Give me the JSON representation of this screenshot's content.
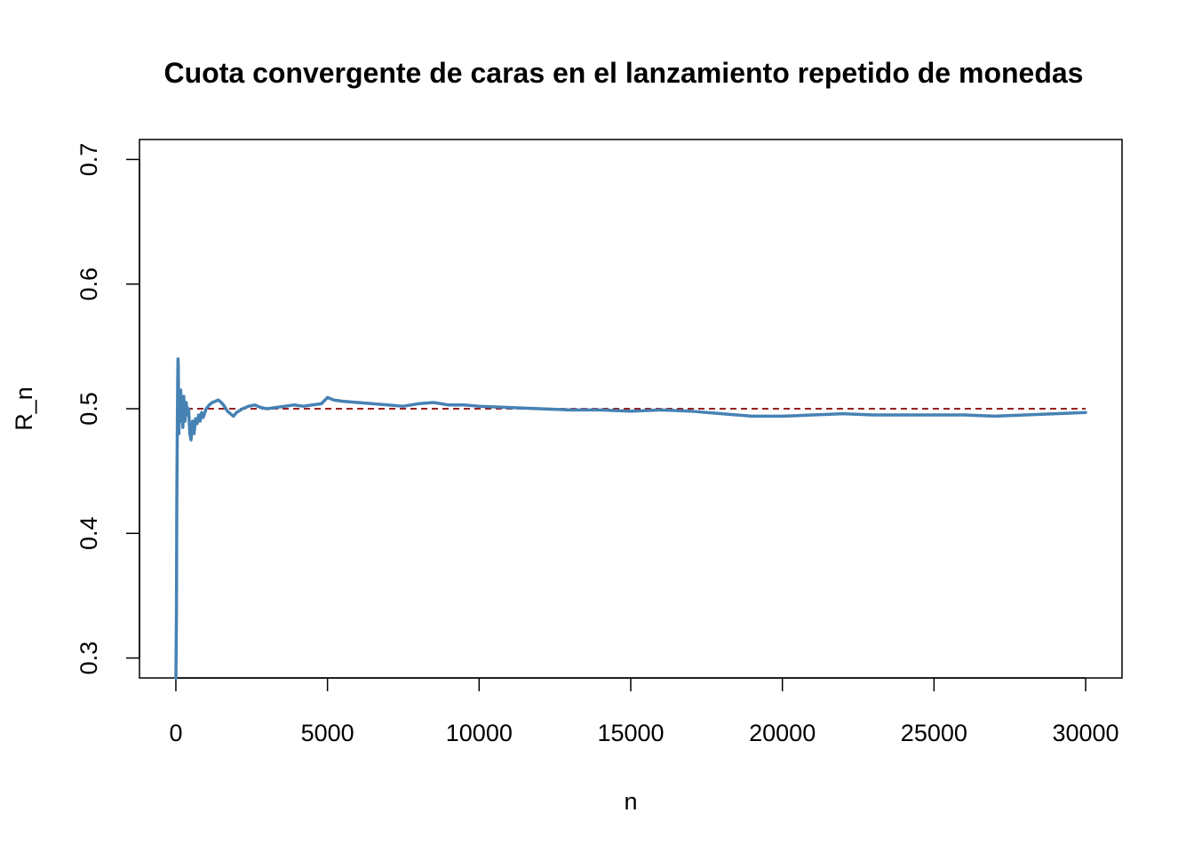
{
  "chart_data": {
    "type": "line",
    "title": "Cuota convergente de caras en el lanzamiento repetido de monedas",
    "xlabel": "n",
    "ylabel": "R_n",
    "xlim": [
      -1200,
      31200
    ],
    "ylim": [
      0.284,
      0.716
    ],
    "x_ticks": [
      0,
      5000,
      10000,
      15000,
      20000,
      25000,
      30000
    ],
    "x_tick_labels": [
      "0",
      "5000",
      "10000",
      "15000",
      "20000",
      "25000",
      "30000"
    ],
    "y_ticks": [
      0.3,
      0.4,
      0.5,
      0.6,
      0.7
    ],
    "y_tick_labels": [
      "0.3",
      "0.4",
      "0.5",
      "0.6",
      "0.7"
    ],
    "grid": false,
    "reference_line": {
      "y": 0.5,
      "style": "dashed",
      "color": "#8B0000"
    },
    "series": [
      {
        "color": "#4682B4",
        "x": [
          1,
          10,
          20,
          30,
          40,
          50,
          60,
          70,
          80,
          90,
          100,
          120,
          140,
          160,
          180,
          200,
          230,
          260,
          300,
          340,
          380,
          420,
          460,
          500,
          550,
          600,
          650,
          700,
          750,
          800,
          850,
          900,
          1000,
          1100,
          1200,
          1300,
          1400,
          1500,
          1600,
          1700,
          1800,
          1900,
          2000,
          2200,
          2400,
          2600,
          2800,
          3000,
          3300,
          3600,
          3900,
          4200,
          4500,
          4800,
          5000,
          5200,
          5500,
          6000,
          6500,
          7000,
          7500,
          8000,
          8500,
          9000,
          9500,
          10000,
          11000,
          12000,
          13000,
          14000,
          15000,
          16000,
          17000,
          18000,
          19000,
          20000,
          21000,
          22000,
          23000,
          24000,
          25000,
          26000,
          27000,
          28000,
          29000,
          30000
        ],
        "y": [
          0.284,
          0.31,
          0.34,
          0.42,
          0.46,
          0.49,
          0.52,
          0.54,
          0.535,
          0.5,
          0.48,
          0.51,
          0.495,
          0.515,
          0.49,
          0.505,
          0.485,
          0.51,
          0.49,
          0.505,
          0.495,
          0.5,
          0.48,
          0.475,
          0.49,
          0.48,
          0.492,
          0.488,
          0.495,
          0.49,
          0.497,
          0.493,
          0.5,
          0.503,
          0.505,
          0.506,
          0.507,
          0.505,
          0.502,
          0.498,
          0.496,
          0.494,
          0.497,
          0.5,
          0.502,
          0.503,
          0.501,
          0.5,
          0.501,
          0.502,
          0.503,
          0.502,
          0.503,
          0.504,
          0.509,
          0.507,
          0.506,
          0.505,
          0.504,
          0.503,
          0.502,
          0.504,
          0.505,
          0.503,
          0.503,
          0.502,
          0.501,
          0.5,
          0.499,
          0.499,
          0.498,
          0.499,
          0.498,
          0.496,
          0.494,
          0.494,
          0.495,
          0.496,
          0.495,
          0.495,
          0.495,
          0.495,
          0.494,
          0.495,
          0.496,
          0.497
        ]
      }
    ]
  }
}
